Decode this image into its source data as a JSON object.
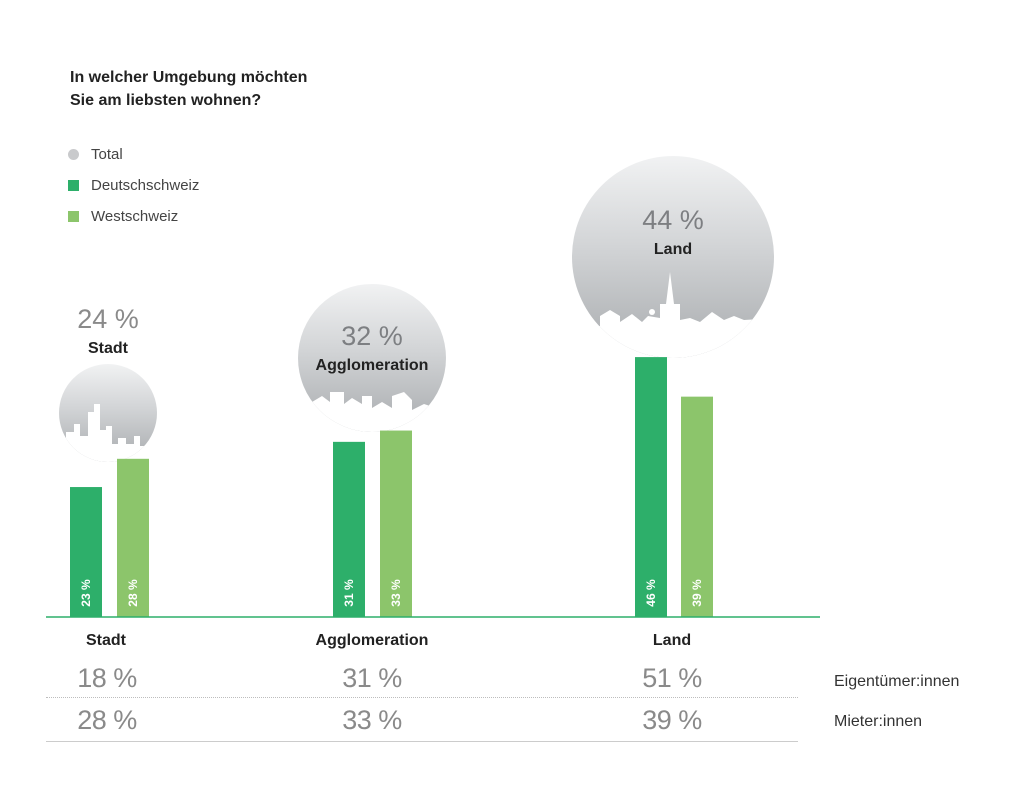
{
  "title_lines": [
    "In welcher Umgebung möchten",
    "Sie am liebsten wohnen?"
  ],
  "legend": [
    {
      "label": "Total",
      "color": "#c9cacc",
      "shape": "circle"
    },
    {
      "label": "Deutschschweiz",
      "color": "#2daf6a",
      "shape": "square"
    },
    {
      "label": "Westschweiz",
      "color": "#8cc56b",
      "shape": "square"
    }
  ],
  "chart_data": {
    "type": "bar",
    "title": "In welcher Umgebung möchten Sie am liebsten wohnen?",
    "categories": [
      "Stadt",
      "Agglomeration",
      "Land"
    ],
    "series": [
      {
        "name": "Deutschschweiz",
        "values": [
          23,
          31,
          46
        ],
        "labels": [
          "23 %",
          "31 %",
          "46 %"
        ],
        "color": "#2daf6a"
      },
      {
        "name": "Westschweiz",
        "values": [
          28,
          33,
          39
        ],
        "labels": [
          "28 %",
          "33 %",
          "39 %"
        ],
        "color": "#8cc56b"
      }
    ],
    "totals": [
      {
        "category": "Stadt",
        "value": 24,
        "label": "24 %"
      },
      {
        "category": "Agglomeration",
        "value": 32,
        "label": "32 %"
      },
      {
        "category": "Land",
        "value": 44,
        "label": "44 %"
      }
    ],
    "ylim": [
      0,
      50
    ],
    "grid": false
  },
  "table": {
    "rows": [
      {
        "label": "Eigentümer:innen",
        "values": [
          "18 %",
          "31 %",
          "51 %"
        ]
      },
      {
        "label": "Mieter:innen",
        "values": [
          "28 %",
          "33 %",
          "39 %"
        ]
      }
    ]
  }
}
